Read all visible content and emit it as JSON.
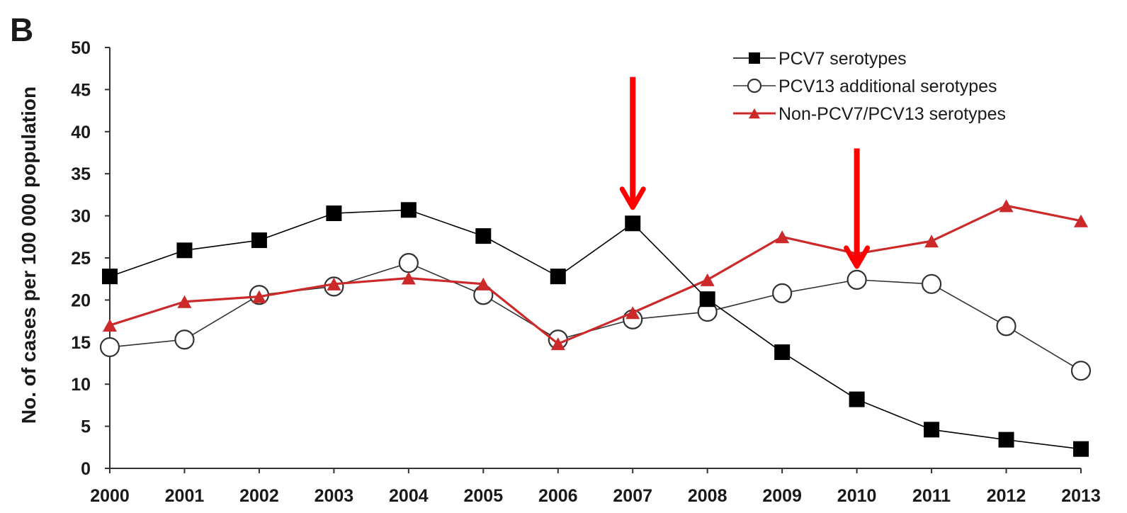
{
  "panel_label": "B",
  "colors": {
    "pcv7": "#000000",
    "pcv13": "#333333",
    "non_pcv": "#cc2a2a",
    "annotation_arrow": "#ff0000",
    "axis": "#333333"
  },
  "chart_data": {
    "type": "line",
    "xlabel": "",
    "ylabel": "No. of cases per 100 000 population",
    "ylim": [
      0,
      50
    ],
    "yticks": [
      "0",
      "5",
      "10",
      "15",
      "20",
      "25",
      "30",
      "35",
      "40",
      "45",
      "50"
    ],
    "categories": [
      "2000",
      "2001",
      "2002",
      "2003",
      "2004",
      "2005",
      "2006",
      "2007",
      "2008",
      "2009",
      "2010",
      "2011",
      "2012",
      "2013"
    ],
    "grid": false,
    "legend_position": "top-right",
    "series": [
      {
        "name": "PCV7 serotypes",
        "marker": "filled-square",
        "values": [
          22.8,
          25.9,
          27.1,
          30.3,
          30.7,
          27.6,
          22.8,
          29.1,
          20.1,
          13.8,
          8.2,
          4.6,
          3.4,
          2.3
        ]
      },
      {
        "name": "PCV13 additional serotypes",
        "marker": "open-circle",
        "values": [
          14.4,
          15.3,
          20.6,
          21.6,
          24.4,
          20.6,
          15.3,
          17.7,
          18.6,
          20.8,
          22.4,
          21.9,
          16.9,
          11.6
        ]
      },
      {
        "name": "Non-PCV7/PCV13 serotypes",
        "marker": "filled-triangle",
        "values": [
          17.0,
          19.8,
          20.4,
          21.9,
          22.6,
          21.9,
          14.8,
          18.5,
          22.4,
          27.5,
          25.5,
          27.0,
          31.2,
          29.4
        ]
      }
    ],
    "annotations": [
      {
        "type": "arrow",
        "at_category": "2007",
        "y_from": 46.5,
        "y_to": 31.0
      },
      {
        "type": "arrow",
        "at_category": "2010",
        "y_from": 38.0,
        "y_to": 24.0
      }
    ]
  }
}
